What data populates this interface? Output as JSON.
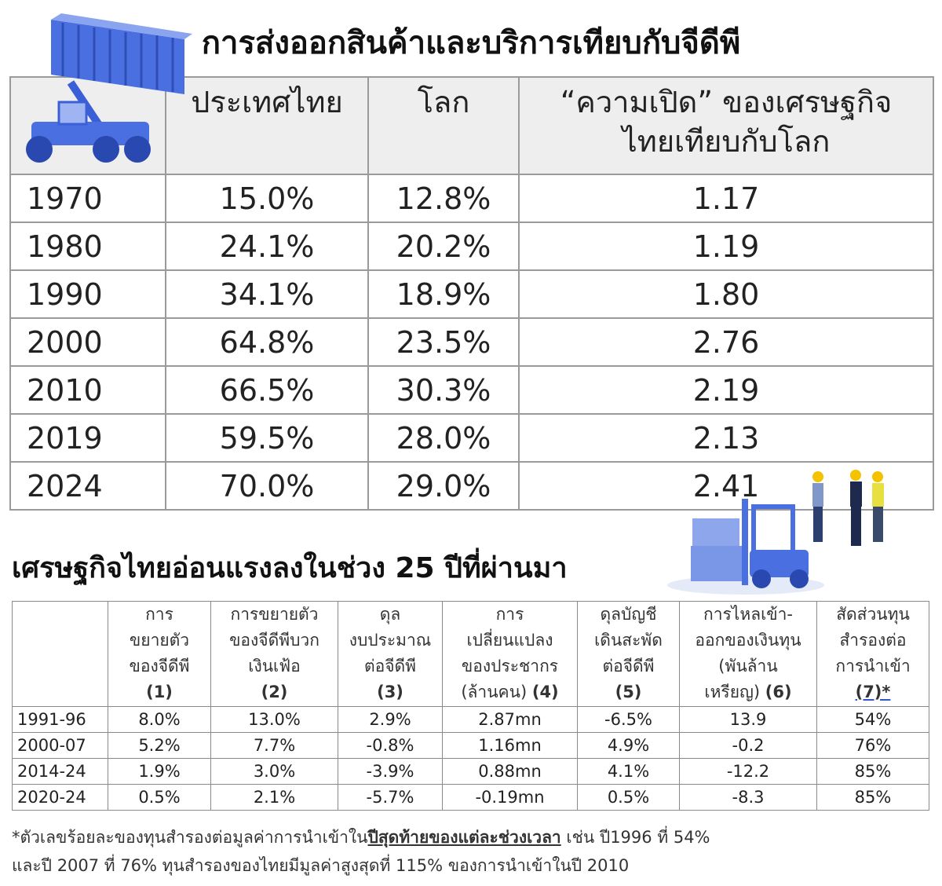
{
  "title1": "การส่งออกสินค้าและบริการเทียบกับจีดีพี",
  "table1": {
    "header": [
      [
        "ประเทศไทย"
      ],
      [
        "โลก"
      ],
      [
        "“ความเปิด” ของเศรษฐกิจ",
        "ไทยเทียบกับโลก"
      ]
    ],
    "rows": [
      [
        "1970",
        "15.0%",
        "12.8%",
        "1.17"
      ],
      [
        "1980",
        "24.1%",
        "20.2%",
        "1.19"
      ],
      [
        "1990",
        "34.1%",
        "18.9%",
        "1.80"
      ],
      [
        "2000",
        "64.8%",
        "23.5%",
        "2.76"
      ],
      [
        "2010",
        "66.5%",
        "30.3%",
        "2.19"
      ],
      [
        "2019",
        "59.5%",
        "28.0%",
        "2.13"
      ],
      [
        "2024",
        "70.0%",
        "29.0%",
        "2.41"
      ]
    ]
  },
  "title2": "เศรษฐกิจไทยอ่อนแรงลงในช่วง 25 ปีที่ผ่านมา",
  "table2": {
    "header": [
      {
        "lines": [
          "การ",
          "ขยายตัว",
          "ของจีดีพี"
        ],
        "num": "(1)"
      },
      {
        "lines": [
          "การขยายตัว",
          "ของจีดีพีบวก",
          "เงินเฟ้อ"
        ],
        "num": "(2)"
      },
      {
        "lines": [
          "ดุล",
          "งบประมาณ",
          "ต่อจีดีพี"
        ],
        "num": "(3)"
      },
      {
        "lines": [
          "การ",
          "เปลี่ยนแปลง",
          "ของประชากร",
          "(ล้านคน)"
        ],
        "num": "(4)"
      },
      {
        "lines": [
          "ดุลบัญชี",
          "เดินสะพัด",
          "ต่อจีดีพี"
        ],
        "num": "(5)"
      },
      {
        "lines": [
          "การไหลเข้า-",
          "ออกของเงินทุน",
          "(พันล้าน",
          "เหรียญ)"
        ],
        "num": "(6)"
      },
      {
        "lines": [
          "สัดส่วนทุน",
          "สำรองต่อ",
          "การนำเข้า"
        ],
        "num": "(7)*"
      }
    ],
    "rows": [
      [
        "1991-96",
        "8.0%",
        "13.0%",
        "2.9%",
        "2.87mn",
        "-6.5%",
        "13.9",
        "54%"
      ],
      [
        "2000-07",
        "5.2%",
        "7.7%",
        "-0.8%",
        "1.16mn",
        "4.9%",
        "-0.2",
        "76%"
      ],
      [
        "2014-24",
        "1.9%",
        "3.0%",
        "-3.9%",
        "0.88mn",
        "4.1%",
        "-12.2",
        "85%"
      ],
      [
        "2020-24",
        "0.5%",
        "2.1%",
        "-5.7%",
        "-0.19mn",
        "0.5%",
        "-8.3",
        "85%"
      ]
    ]
  },
  "footnote": {
    "line1": [
      "*ตัวเลขร้อยละของทุนสำรองต่อมูลค่าการนำเข้าใน",
      "ปีสุดท้ายของแต่ละช่วงเวลา",
      " เช่น ปี1996 ที่ 54%"
    ],
    "line2": "และปี 2007 ที่ 76% ทุนสำรองของไทยมีมูลค่าสูงสุดที่ 115% ของการนำเข้าในปี 2010"
  }
}
